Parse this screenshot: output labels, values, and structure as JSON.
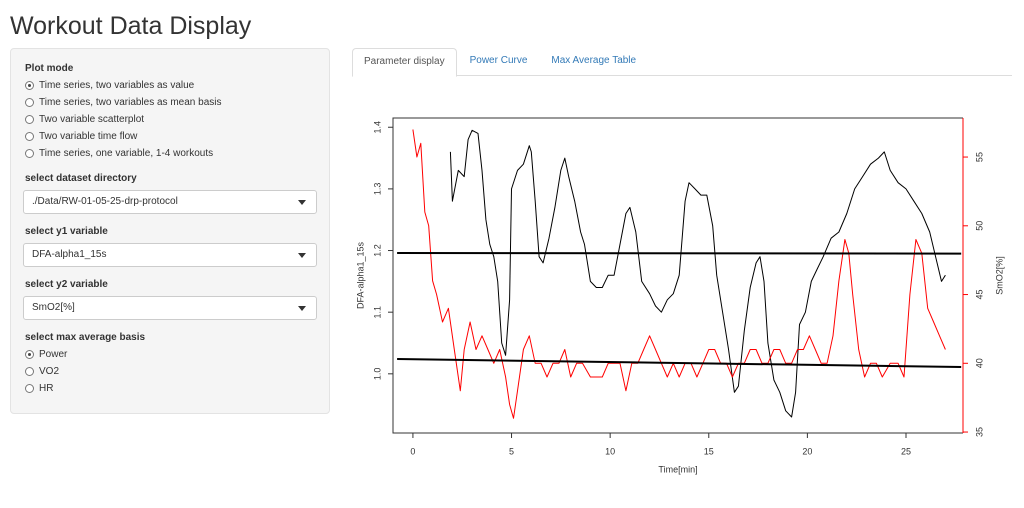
{
  "header": {
    "title": "Workout Data Display"
  },
  "sidebar": {
    "plot_mode": {
      "label": "Plot mode",
      "options": [
        "Time series, two variables as value",
        "Time series, two variables as mean basis",
        "Two variable scatterplot",
        "Two variable time flow",
        "Time series, one variable, 1-4 workouts"
      ],
      "selected": 0
    },
    "dataset": {
      "label": "select dataset directory",
      "value": "./Data/RW-01-05-25-drp-protocol"
    },
    "y1": {
      "label": "select y1 variable",
      "value": "DFA-alpha1_15s"
    },
    "y2": {
      "label": "select y2 variable",
      "value": "SmO2[%]"
    },
    "max_average": {
      "label": "select max average basis",
      "options": [
        "Power",
        "VO2",
        "HR"
      ],
      "selected": 0
    }
  },
  "tabs": {
    "items": [
      "Parameter display",
      "Power Curve",
      "Max Average Table"
    ],
    "active": 0
  },
  "chart_data": {
    "type": "line",
    "x_label": "Time[min]",
    "y_label": "DFA-alpha1_15s",
    "y2_label": "SmO2[%]",
    "xlim": [
      -1.01,
      27.89
    ],
    "xticks": [
      0,
      5,
      10,
      15,
      20,
      25
    ],
    "ylim": [
      0.904,
      1.415
    ],
    "yticks": [
      {
        "value": 1.0,
        "label": "1.0"
      },
      1.1,
      1.2,
      1.3,
      1.4
    ],
    "y2lim": [
      34.93,
      57.84
    ],
    "y2ticks": [
      35,
      40,
      45,
      50,
      55
    ],
    "y2_color": "#ff0000",
    "series": [
      {
        "color": "#000000",
        "axis": "y",
        "x": [
          1.9,
          2.0,
          2.3,
          2.6,
          2.8,
          3.0,
          3.3,
          3.5,
          3.7,
          3.9,
          4.1,
          4.3,
          4.5,
          4.7,
          4.9,
          5.0,
          5.3,
          5.6,
          5.9,
          6.0,
          6.2,
          6.4,
          6.6,
          6.9,
          7.2,
          7.5,
          7.7,
          7.9,
          8.2,
          8.5,
          8.7,
          9.0,
          9.3,
          9.6,
          9.9,
          10.2,
          10.5,
          10.8,
          11.0,
          11.3,
          11.6,
          12.0,
          12.3,
          12.6,
          12.9,
          13.2,
          13.5,
          13.8,
          14.0,
          14.3,
          14.6,
          14.9,
          15.2,
          15.4,
          15.7,
          16.0,
          16.3,
          16.5,
          16.8,
          17.1,
          17.4,
          17.6,
          17.8,
          18.0,
          18.3,
          18.6,
          18.9,
          19.2,
          19.4,
          19.6,
          19.9,
          20.2,
          20.5,
          20.8,
          21.2,
          21.6,
          22.0,
          22.4,
          22.8,
          23.2,
          23.6,
          23.9,
          24.2,
          24.6,
          25.0,
          25.4,
          25.8,
          26.2,
          26.5,
          26.8,
          27.0
        ],
        "values": [
          1.36,
          1.28,
          1.33,
          1.32,
          1.38,
          1.395,
          1.39,
          1.33,
          1.25,
          1.21,
          1.19,
          1.15,
          1.05,
          1.03,
          1.12,
          1.3,
          1.33,
          1.34,
          1.37,
          1.36,
          1.28,
          1.19,
          1.18,
          1.22,
          1.27,
          1.33,
          1.35,
          1.32,
          1.28,
          1.23,
          1.21,
          1.15,
          1.14,
          1.14,
          1.16,
          1.16,
          1.21,
          1.26,
          1.27,
          1.23,
          1.15,
          1.13,
          1.11,
          1.1,
          1.12,
          1.13,
          1.16,
          1.28,
          1.31,
          1.3,
          1.29,
          1.29,
          1.24,
          1.16,
          1.1,
          1.04,
          0.97,
          0.98,
          1.07,
          1.14,
          1.18,
          1.19,
          1.15,
          1.05,
          0.99,
          0.97,
          0.94,
          0.93,
          0.97,
          1.08,
          1.1,
          1.15,
          1.17,
          1.19,
          1.22,
          1.23,
          1.26,
          1.3,
          1.32,
          1.34,
          1.35,
          1.36,
          1.33,
          1.31,
          1.3,
          1.28,
          1.26,
          1.23,
          1.19,
          1.15,
          1.16
        ]
      },
      {
        "color": "#ff0000",
        "axis": "y2",
        "x": [
          0,
          0.2,
          0.4,
          0.6,
          0.8,
          1.0,
          1.2,
          1.5,
          1.8,
          2.1,
          2.4,
          2.6,
          2.9,
          3.2,
          3.5,
          3.8,
          4.1,
          4.4,
          4.7,
          4.9,
          5.1,
          5.3,
          5.6,
          5.9,
          6.2,
          6.5,
          6.8,
          7.1,
          7.4,
          7.7,
          8.0,
          8.3,
          8.6,
          9.0,
          9.3,
          9.6,
          9.9,
          10.2,
          10.5,
          10.8,
          11.1,
          11.4,
          11.7,
          12.0,
          12.3,
          12.6,
          12.9,
          13.2,
          13.5,
          13.8,
          14.1,
          14.4,
          14.7,
          15.0,
          15.3,
          15.6,
          15.9,
          16.2,
          16.5,
          16.8,
          17.1,
          17.4,
          17.7,
          18.0,
          18.3,
          18.6,
          18.9,
          19.2,
          19.5,
          19.8,
          20.1,
          20.4,
          20.7,
          21.0,
          21.3,
          21.6,
          21.9,
          22.1,
          22.3,
          22.6,
          22.9,
          23.2,
          23.5,
          23.8,
          24.2,
          24.6,
          24.9,
          25.2,
          25.5,
          25.8,
          26.1,
          26.4,
          26.7,
          27.0
        ],
        "values": [
          57,
          55,
          56,
          51,
          50,
          46,
          45,
          43,
          44,
          41,
          38,
          41,
          43,
          41,
          42,
          41,
          40,
          41,
          39,
          37,
          36,
          38,
          41,
          42,
          40,
          40,
          39,
          40,
          40,
          41,
          39,
          40,
          40,
          39,
          39,
          39,
          40,
          40,
          40,
          38,
          40,
          40,
          41,
          42,
          41,
          40,
          39,
          40,
          39,
          40,
          40,
          39,
          40,
          41,
          41,
          40,
          40,
          39,
          40,
          40,
          41,
          41,
          40,
          40,
          41,
          41,
          40,
          40,
          41,
          41,
          42,
          41,
          40,
          40,
          42,
          46,
          49,
          48,
          45,
          41,
          39,
          40,
          40,
          39,
          40,
          40,
          39,
          45,
          49,
          48,
          44,
          43,
          42,
          41
        ]
      },
      {
        "color": "#000000",
        "axis": "y",
        "width": 2,
        "x": [
          -0.8,
          27.8
        ],
        "values": [
          1.196,
          1.195
        ]
      },
      {
        "color": "#000000",
        "axis": "y",
        "width": 2,
        "x": [
          -0.8,
          27.8
        ],
        "values": [
          1.024,
          1.011
        ]
      }
    ]
  }
}
